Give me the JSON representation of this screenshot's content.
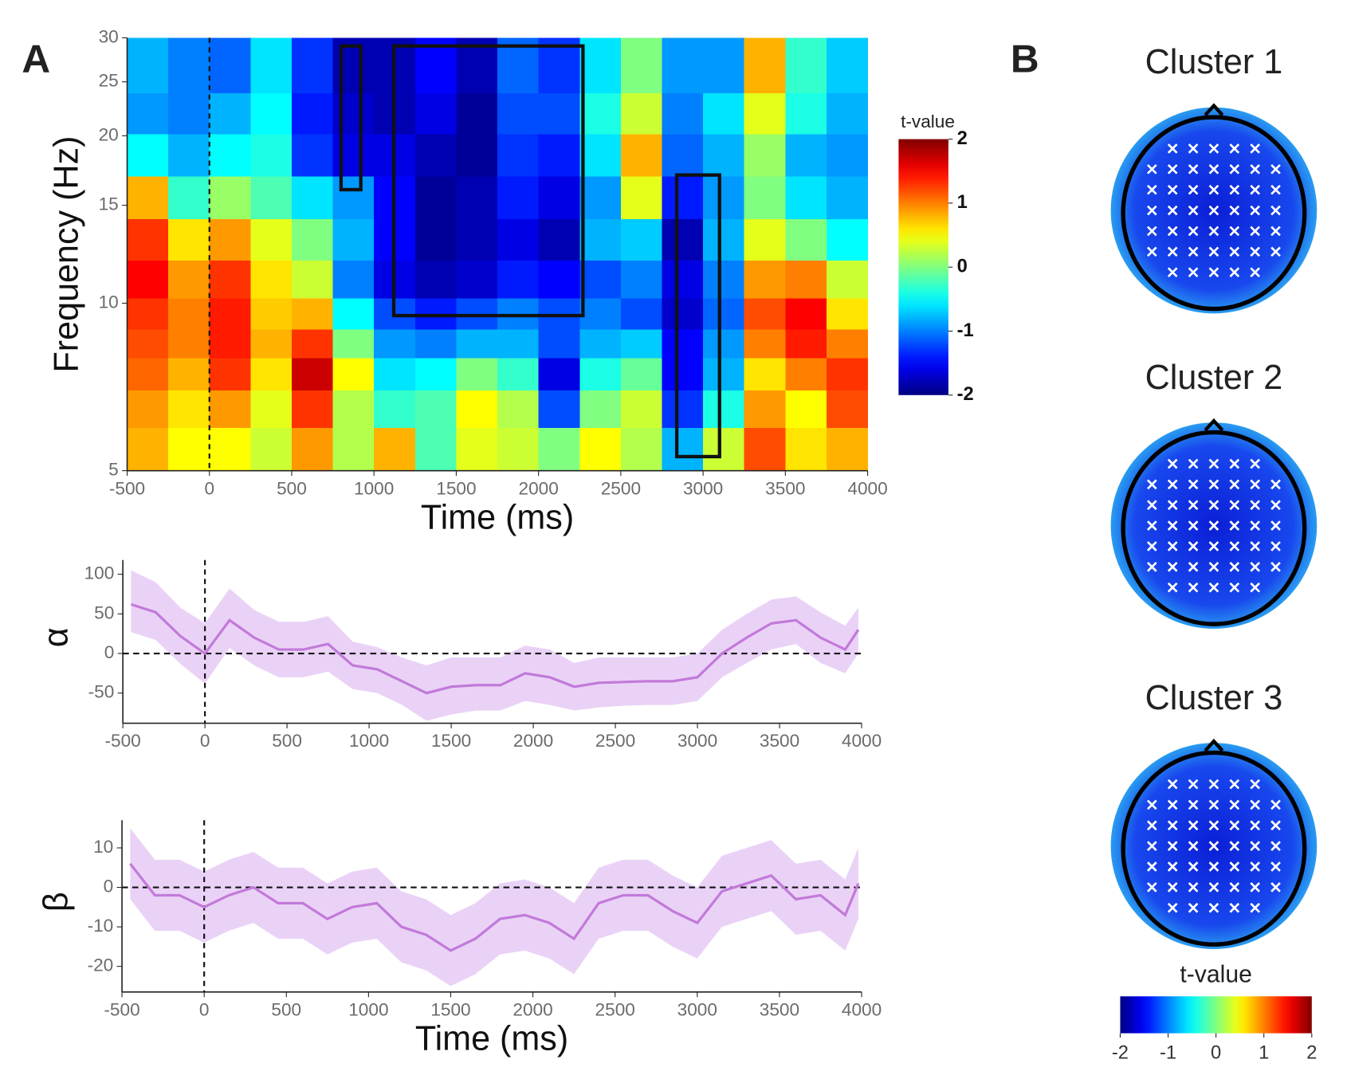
{
  "panel_labels": [
    "A",
    "B"
  ],
  "chart_data": [
    {
      "type": "heatmap",
      "xlabel": "Time (ms)",
      "ylabel": "Frequency (Hz)",
      "x": [
        -375,
        -125,
        125,
        375,
        625,
        875,
        1125,
        1375,
        1625,
        1875,
        2125,
        2375,
        2625,
        2875,
        3125,
        3375,
        3625,
        3875
      ],
      "y": [
        5.5,
        6.5,
        7.5,
        8.5,
        9.5,
        11,
        13,
        15.5,
        18.5,
        22,
        26
      ],
      "z": [
        [
          0.8,
          0.5,
          0.5,
          0.3,
          0.9,
          0.2,
          0.8,
          -0.2,
          0.4,
          0.3,
          0.0,
          0.5,
          0.2,
          -0.8,
          0.3,
          1.2,
          0.6,
          0.8
        ],
        [
          0.9,
          0.6,
          0.9,
          0.4,
          1.3,
          0.2,
          -0.3,
          -0.2,
          0.5,
          0.2,
          -1.2,
          0.0,
          0.3,
          -1.3,
          -0.4,
          0.9,
          0.5,
          1.2
        ],
        [
          1.1,
          0.8,
          1.3,
          0.6,
          1.7,
          0.5,
          -0.6,
          -0.5,
          0.0,
          -0.3,
          -1.6,
          -0.4,
          -0.1,
          -1.5,
          -0.8,
          0.6,
          1.0,
          1.3
        ],
        [
          1.2,
          1.0,
          1.4,
          0.8,
          1.3,
          0.0,
          -0.9,
          -1.0,
          -0.8,
          -0.8,
          -1.2,
          -0.8,
          -0.7,
          -1.5,
          -0.9,
          1.0,
          1.4,
          1.0
        ],
        [
          1.3,
          1.0,
          1.4,
          0.7,
          0.8,
          -0.5,
          -1.2,
          -1.4,
          -1.2,
          -1.0,
          -1.2,
          -1.0,
          -1.2,
          -1.7,
          -1.1,
          1.2,
          1.5,
          0.6
        ],
        [
          1.5,
          0.9,
          1.3,
          0.6,
          0.3,
          -1.0,
          -1.6,
          -1.8,
          -1.7,
          -1.4,
          -1.5,
          -1.2,
          -1.0,
          -1.6,
          -1.0,
          0.9,
          1.0,
          0.3
        ],
        [
          1.3,
          0.6,
          0.9,
          0.4,
          0.0,
          -0.8,
          -1.5,
          -1.9,
          -1.8,
          -1.6,
          -1.8,
          -0.8,
          -0.7,
          -1.8,
          -0.8,
          0.4,
          0.0,
          -0.5
        ],
        [
          0.8,
          -0.3,
          0.1,
          -0.2,
          -0.6,
          -0.9,
          -1.5,
          -1.9,
          -1.8,
          -1.4,
          -1.6,
          -0.9,
          0.4,
          -1.4,
          -0.9,
          0.0,
          -0.6,
          -0.8
        ],
        [
          -0.5,
          -0.8,
          -0.5,
          -0.4,
          -1.3,
          -1.6,
          -1.6,
          -1.8,
          -1.9,
          -1.3,
          -1.4,
          -0.6,
          0.8,
          -1.1,
          -0.8,
          0.1,
          -0.8,
          -0.9
        ],
        [
          -0.9,
          -1.0,
          -0.8,
          -0.5,
          -1.4,
          -1.7,
          -1.8,
          -1.6,
          -1.9,
          -1.2,
          -1.2,
          -0.4,
          0.3,
          -1.0,
          -0.6,
          0.4,
          -0.4,
          -0.8
        ],
        [
          -0.8,
          -1.0,
          -1.1,
          -0.6,
          -1.3,
          -1.8,
          -1.8,
          -1.5,
          -1.8,
          -1.1,
          -1.3,
          -0.6,
          0.0,
          -0.9,
          -0.9,
          0.8,
          -0.3,
          -0.7
        ]
      ],
      "xlim": [
        -500,
        4000
      ],
      "xticks": [
        -500,
        0,
        500,
        1000,
        1500,
        2000,
        2500,
        3000,
        3500,
        4000
      ],
      "ylim": [
        5,
        30
      ],
      "yticks": [
        5,
        10,
        15,
        20,
        25,
        30
      ],
      "log_y": true,
      "vline": 0,
      "boxes": [
        {
          "x": [
            800,
            920
          ],
          "y": [
            16,
            29
          ]
        },
        {
          "x": [
            1120,
            2270
          ],
          "y": [
            9.5,
            29
          ]
        },
        {
          "x": [
            2840,
            3100
          ],
          "y": [
            5.3,
            17
          ]
        }
      ],
      "colorbar": {
        "title": "t-value",
        "lim": [
          -2,
          2
        ],
        "ticks": [
          2,
          1,
          0,
          -1,
          -2
        ]
      }
    },
    {
      "type": "line",
      "ylabel": "α",
      "x": [
        -450,
        -300,
        -150,
        0,
        150,
        300,
        450,
        600,
        750,
        900,
        1050,
        1200,
        1350,
        1500,
        1650,
        1800,
        1950,
        2100,
        2250,
        2400,
        2550,
        2700,
        2850,
        3000,
        3150,
        3300,
        3450,
        3600,
        3750,
        3900,
        3980
      ],
      "values": [
        62,
        52,
        22,
        0,
        42,
        20,
        5,
        5,
        12,
        -15,
        -20,
        -35,
        -50,
        -42,
        -40,
        -40,
        -25,
        -30,
        -42,
        -37,
        -36,
        -35,
        -35,
        -30,
        0,
        20,
        38,
        42,
        20,
        5,
        30
      ],
      "lower": [
        27,
        17,
        -13,
        -38,
        7,
        -15,
        -30,
        -30,
        -23,
        -45,
        -50,
        -65,
        -85,
        -77,
        -72,
        -72,
        -60,
        -65,
        -72,
        -68,
        -66,
        -65,
        -65,
        -60,
        -30,
        -12,
        5,
        12,
        -12,
        -25,
        0
      ],
      "upper": [
        105,
        90,
        58,
        38,
        82,
        55,
        40,
        40,
        47,
        15,
        8,
        -5,
        -15,
        -5,
        -5,
        -5,
        10,
        5,
        -12,
        -5,
        -5,
        -5,
        -5,
        0,
        30,
        50,
        68,
        72,
        52,
        35,
        58
      ],
      "color": "#c27ad9",
      "band_color": "#ead2f7",
      "xlim": [
        -500,
        4000
      ],
      "xticks": [
        -500,
        0,
        500,
        1000,
        1500,
        2000,
        2500,
        3000,
        3500,
        4000
      ],
      "ylim": [
        -88,
        118
      ],
      "yticks": [
        -50,
        0,
        50,
        100
      ],
      "hline": 0,
      "vline": 0
    },
    {
      "type": "line",
      "ylabel": "β",
      "xlabel": "Time (ms)",
      "x": [
        -450,
        -300,
        -150,
        0,
        150,
        300,
        450,
        600,
        750,
        900,
        1050,
        1200,
        1350,
        1500,
        1650,
        1800,
        1950,
        2100,
        2250,
        2400,
        2550,
        2700,
        2850,
        3000,
        3150,
        3300,
        3450,
        3600,
        3750,
        3900,
        3980
      ],
      "values": [
        6,
        -2,
        -2,
        -5,
        -2,
        0,
        -4,
        -4,
        -8,
        -5,
        -4,
        -10,
        -12,
        -16,
        -13,
        -8,
        -7,
        -9,
        -13,
        -4,
        -2,
        -2,
        -6,
        -9,
        -1,
        1,
        3,
        -3,
        -2,
        -7,
        1
      ],
      "lower": [
        -3,
        -11,
        -11,
        -14,
        -11,
        -9,
        -13,
        -13,
        -17,
        -14,
        -13,
        -19,
        -21,
        -25,
        -22,
        -17,
        -16,
        -18,
        -22,
        -13,
        -11,
        -11,
        -15,
        -18,
        -10,
        -8,
        -6,
        -12,
        -11,
        -16,
        -8
      ],
      "upper": [
        15,
        7,
        7,
        4,
        7,
        9,
        5,
        5,
        1,
        4,
        5,
        -1,
        -3,
        -7,
        -4,
        1,
        2,
        0,
        -4,
        5,
        7,
        7,
        3,
        0,
        8,
        10,
        12,
        6,
        7,
        2,
        10
      ],
      "color": "#c27ad9",
      "band_color": "#ead2f7",
      "xlim": [
        -500,
        4000
      ],
      "xticks": [
        -500,
        0,
        500,
        1000,
        1500,
        2000,
        2500,
        3000,
        3500,
        4000
      ],
      "ylim": [
        -26.5,
        17
      ],
      "yticks": [
        -20,
        -10,
        0,
        10
      ],
      "hline": 0,
      "vline": 0
    },
    {
      "type": "topomap",
      "panels": [
        "Cluster 1",
        "Cluster 2",
        "Cluster 3"
      ],
      "colorbar": {
        "title": "t-value",
        "lim": [
          -2,
          2
        ],
        "ticks": [
          -2,
          -1,
          0,
          1,
          2
        ]
      }
    }
  ]
}
